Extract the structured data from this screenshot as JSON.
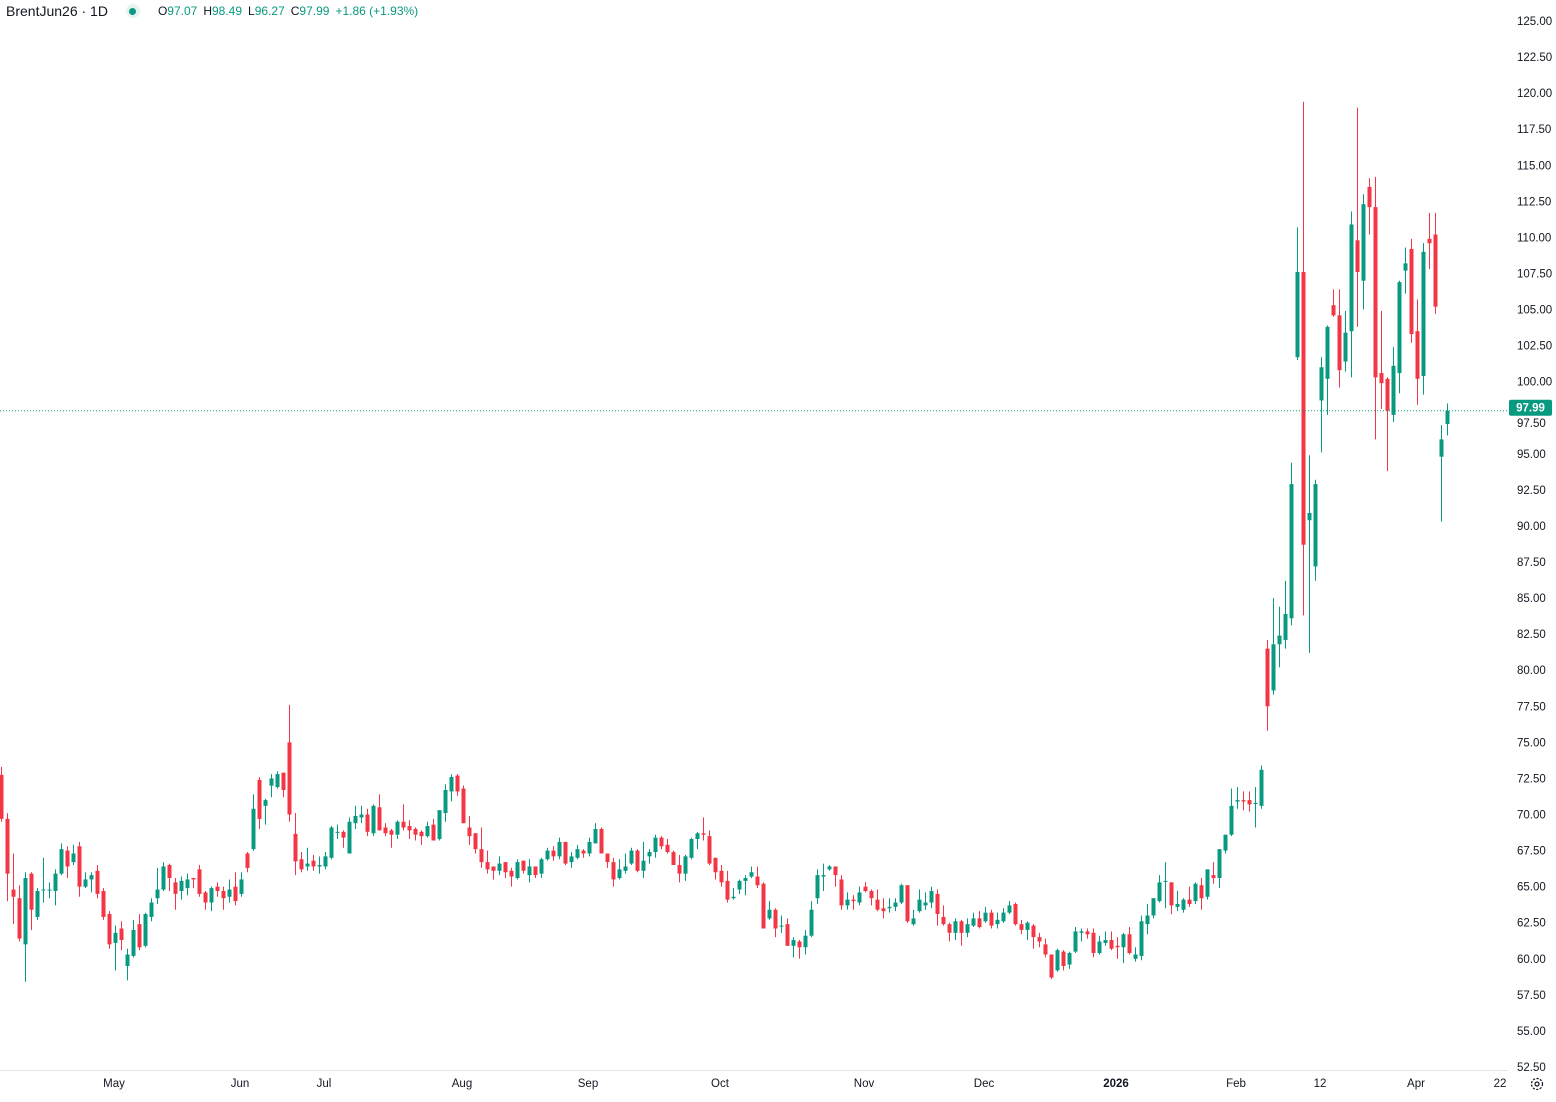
{
  "legend": {
    "symbol": "BrentJun26 · 1D",
    "open_label": "O",
    "open": "97.07",
    "high_label": "H",
    "high": "98.49",
    "low_label": "L",
    "low": "96.27",
    "close_label": "C",
    "close": "97.99",
    "change": "+1.86 (+1.93%)",
    "status_icon": "market-open-dot-icon"
  },
  "colors": {
    "up": "#089981",
    "down": "#f23645",
    "text": "#131722"
  },
  "chart_data": {
    "type": "candlestick",
    "title": "BrentJun26",
    "interval": "1D",
    "ylim": [
      52.5,
      125
    ],
    "y_ticks": [
      "125.00",
      "122.50",
      "120.00",
      "117.50",
      "115.00",
      "112.50",
      "110.00",
      "107.50",
      "105.00",
      "102.50",
      "100.00",
      "97.50",
      "95.00",
      "92.50",
      "90.00",
      "87.50",
      "85.00",
      "82.50",
      "80.00",
      "77.50",
      "75.00",
      "72.50",
      "70.00",
      "67.50",
      "65.00",
      "62.50",
      "60.00",
      "57.50",
      "55.00",
      "52.50"
    ],
    "x_ticks": [
      "May",
      "Jun",
      "Jul",
      "Aug",
      "Sep",
      "Oct",
      "Nov",
      "Dec",
      "2026",
      "Feb",
      "12",
      "Apr",
      "22"
    ],
    "last_price": 97.99,
    "last_price_label": "97.99",
    "grid": false,
    "ohlc_order": [
      "open",
      "high",
      "low",
      "close"
    ],
    "candles": [
      [
        72.75,
        73.3,
        69.5,
        69.7
      ],
      [
        69.7,
        70.1,
        64.0,
        65.9
      ],
      [
        64.8,
        67.3,
        62.4,
        64.3
      ],
      [
        64.2,
        65.1,
        61.2,
        61.4
      ],
      [
        61.0,
        66.0,
        58.4,
        65.6
      ],
      [
        65.9,
        66.0,
        62.0,
        63.4
      ],
      [
        62.9,
        64.9,
        62.7,
        64.7
      ],
      [
        64.8,
        67.0,
        63.9,
        64.8
      ],
      [
        64.8,
        65.3,
        64.2,
        64.8
      ],
      [
        64.7,
        66.2,
        63.7,
        65.9
      ],
      [
        65.9,
        68.0,
        65.8,
        67.6
      ],
      [
        67.5,
        67.8,
        65.6,
        66.4
      ],
      [
        66.7,
        67.9,
        66.5,
        67.3
      ],
      [
        67.8,
        68.1,
        64.3,
        65.0
      ],
      [
        65.0,
        66.0,
        64.9,
        65.5
      ],
      [
        65.5,
        66.0,
        64.6,
        65.8
      ],
      [
        66.1,
        66.5,
        64.2,
        64.5
      ],
      [
        64.7,
        64.9,
        62.7,
        62.9
      ],
      [
        63.1,
        63.3,
        60.7,
        61.0
      ],
      [
        61.1,
        62.3,
        59.2,
        61.8
      ],
      [
        62.1,
        62.6,
        60.6,
        61.3
      ],
      [
        59.5,
        60.7,
        58.5,
        60.3
      ],
      [
        60.2,
        62.7,
        60.1,
        62.0
      ],
      [
        62.4,
        63.1,
        60.6,
        60.8
      ],
      [
        60.9,
        63.2,
        60.8,
        63.1
      ],
      [
        62.9,
        64.2,
        62.6,
        63.9
      ],
      [
        64.2,
        66.3,
        63.8,
        64.8
      ],
      [
        64.8,
        66.7,
        64.7,
        66.4
      ],
      [
        66.5,
        66.6,
        64.7,
        65.6
      ],
      [
        65.3,
        65.6,
        63.4,
        64.5
      ],
      [
        64.7,
        65.7,
        64.1,
        65.4
      ],
      [
        64.9,
        65.9,
        64.4,
        65.5
      ],
      [
        65.6,
        65.6,
        64.9,
        65.5
      ],
      [
        66.2,
        66.5,
        64.3,
        64.5
      ],
      [
        64.6,
        64.7,
        63.4,
        63.9
      ],
      [
        63.9,
        65.0,
        63.3,
        64.9
      ],
      [
        65.0,
        65.3,
        64.3,
        64.7
      ],
      [
        64.7,
        65.0,
        63.4,
        64.2
      ],
      [
        64.3,
        65.5,
        63.9,
        64.8
      ],
      [
        65.0,
        66.0,
        63.7,
        64.0
      ],
      [
        64.5,
        66.0,
        64.3,
        65.5
      ],
      [
        67.3,
        67.4,
        66.0,
        66.3
      ],
      [
        67.6,
        71.4,
        67.5,
        70.4
      ],
      [
        72.4,
        72.6,
        69.0,
        69.7
      ],
      [
        70.6,
        71.1,
        69.3,
        71.0
      ],
      [
        72.0,
        72.8,
        71.2,
        72.5
      ],
      [
        71.9,
        73.0,
        71.8,
        72.8
      ],
      [
        72.9,
        72.9,
        71.2,
        71.7
      ],
      [
        75.0,
        77.6,
        69.5,
        70.0
      ],
      [
        68.66,
        70.1,
        65.8,
        66.75
      ],
      [
        66.9,
        67.4,
        66.0,
        66.2
      ],
      [
        66.4,
        67.7,
        66.1,
        66.6
      ],
      [
        66.8,
        67.2,
        66.1,
        66.4
      ],
      [
        66.4,
        67.1,
        65.9,
        66.5
      ],
      [
        66.4,
        67.4,
        66.2,
        67.1
      ],
      [
        67.0,
        69.2,
        66.9,
        69.1
      ],
      [
        68.8,
        69.3,
        68.3,
        68.8
      ],
      [
        68.8,
        68.9,
        67.7,
        68.4
      ],
      [
        67.3,
        69.8,
        67.3,
        69.5
      ],
      [
        69.4,
        70.6,
        69.0,
        69.9
      ],
      [
        69.8,
        70.6,
        69.4,
        70.0
      ],
      [
        70.0,
        70.4,
        68.5,
        68.8
      ],
      [
        68.7,
        70.7,
        68.5,
        70.6
      ],
      [
        70.5,
        71.4,
        68.9,
        68.9
      ],
      [
        69.1,
        69.4,
        68.5,
        68.7
      ],
      [
        68.9,
        69.0,
        67.7,
        68.6
      ],
      [
        68.6,
        69.6,
        68.3,
        69.5
      ],
      [
        69.5,
        70.7,
        68.9,
        69.1
      ],
      [
        69.2,
        69.6,
        68.3,
        68.9
      ],
      [
        69.0,
        69.1,
        68.2,
        68.6
      ],
      [
        68.8,
        68.9,
        67.9,
        68.5
      ],
      [
        68.5,
        69.5,
        68.4,
        69.2
      ],
      [
        69.3,
        69.7,
        68.2,
        68.2
      ],
      [
        68.3,
        70.3,
        68.2,
        70.3
      ],
      [
        70.1,
        72.1,
        69.5,
        71.7
      ],
      [
        71.6,
        72.8,
        70.9,
        72.6
      ],
      [
        72.7,
        72.8,
        71.3,
        71.6
      ],
      [
        71.8,
        72.0,
        69.4,
        69.4
      ],
      [
        69.1,
        69.9,
        67.9,
        68.5
      ],
      [
        68.7,
        68.7,
        67.3,
        67.6
      ],
      [
        67.6,
        69.1,
        66.3,
        66.7
      ],
      [
        66.7,
        67.5,
        65.9,
        66.2
      ],
      [
        66.4,
        66.4,
        65.5,
        66.1
      ],
      [
        66.1,
        67.1,
        65.8,
        66.6
      ],
      [
        66.7,
        66.7,
        65.6,
        66.0
      ],
      [
        66.1,
        66.3,
        65.0,
        65.7
      ],
      [
        65.6,
        66.9,
        65.5,
        66.7
      ],
      [
        66.8,
        66.8,
        65.9,
        66.1
      ],
      [
        65.8,
        66.9,
        65.3,
        66.4
      ],
      [
        66.4,
        66.4,
        65.6,
        65.8
      ],
      [
        65.9,
        67.0,
        65.6,
        66.9
      ],
      [
        66.9,
        67.7,
        66.8,
        67.5
      ],
      [
        67.5,
        67.8,
        66.8,
        67.1
      ],
      [
        67.1,
        68.4,
        66.9,
        68.1
      ],
      [
        68.1,
        68.1,
        66.5,
        66.6
      ],
      [
        66.7,
        67.4,
        66.3,
        67.1
      ],
      [
        67.0,
        67.9,
        66.9,
        67.6
      ],
      [
        67.5,
        67.6,
        67.0,
        67.3
      ],
      [
        67.3,
        68.4,
        67.1,
        68.1
      ],
      [
        68.0,
        69.4,
        68.0,
        69.0
      ],
      [
        69.0,
        69.1,
        67.3,
        67.3
      ],
      [
        67.3,
        67.3,
        66.3,
        66.7
      ],
      [
        66.7,
        67.0,
        65.0,
        65.5
      ],
      [
        65.6,
        66.9,
        65.5,
        66.2
      ],
      [
        66.1,
        67.3,
        65.9,
        66.4
      ],
      [
        66.6,
        67.7,
        66.5,
        67.5
      ],
      [
        67.5,
        67.6,
        66.0,
        66.1
      ],
      [
        66.1,
        68.1,
        65.6,
        66.8
      ],
      [
        67.1,
        67.6,
        66.6,
        67.4
      ],
      [
        67.4,
        68.6,
        67.0,
        68.4
      ],
      [
        68.4,
        68.5,
        67.6,
        67.8
      ],
      [
        67.9,
        68.3,
        67.3,
        67.4
      ],
      [
        67.4,
        67.5,
        66.5,
        66.5
      ],
      [
        66.5,
        67.2,
        65.3,
        65.9
      ],
      [
        65.9,
        67.2,
        65.4,
        67.1
      ],
      [
        67.0,
        68.4,
        66.9,
        68.3
      ],
      [
        68.3,
        68.8,
        67.6,
        68.7
      ],
      [
        68.7,
        69.8,
        68.2,
        68.6
      ],
      [
        68.5,
        68.9,
        66.5,
        66.6
      ],
      [
        67.0,
        67.0,
        65.5,
        66.0
      ],
      [
        66.1,
        66.5,
        65.0,
        65.3
      ],
      [
        65.4,
        66.1,
        63.9,
        64.1
      ],
      [
        64.2,
        64.9,
        64.1,
        64.3
      ],
      [
        64.8,
        65.5,
        64.5,
        65.4
      ],
      [
        65.4,
        65.8,
        64.4,
        65.6
      ],
      [
        65.7,
        66.4,
        65.6,
        66.0
      ],
      [
        65.7,
        66.4,
        64.9,
        65.1
      ],
      [
        65.2,
        65.3,
        62.1,
        62.1
      ],
      [
        62.8,
        64.0,
        62.7,
        63.4
      ],
      [
        63.4,
        63.5,
        61.5,
        62.1
      ],
      [
        62.3,
        63.0,
        61.8,
        62.3
      ],
      [
        62.4,
        62.8,
        60.9,
        60.9
      ],
      [
        60.9,
        61.5,
        60.1,
        61.3
      ],
      [
        61.2,
        61.3,
        60.0,
        60.8
      ],
      [
        60.8,
        62.0,
        60.3,
        61.6
      ],
      [
        61.6,
        64.0,
        61.5,
        63.4
      ],
      [
        64.2,
        66.2,
        63.8,
        65.8
      ],
      [
        65.7,
        66.6,
        64.7,
        65.8
      ],
      [
        66.2,
        66.5,
        66.1,
        66.4
      ],
      [
        66.4,
        66.4,
        65.0,
        65.8
      ],
      [
        65.5,
        65.8,
        63.4,
        63.7
      ],
      [
        63.7,
        64.6,
        63.4,
        64.1
      ],
      [
        64.1,
        64.4,
        63.4,
        64.0
      ],
      [
        63.9,
        65.0,
        63.7,
        64.6
      ],
      [
        65.0,
        65.3,
        64.6,
        64.7
      ],
      [
        64.7,
        64.8,
        63.7,
        64.2
      ],
      [
        64.1,
        64.8,
        63.3,
        63.4
      ],
      [
        63.5,
        64.2,
        62.8,
        63.3
      ],
      [
        63.5,
        64.2,
        63.2,
        63.6
      ],
      [
        63.6,
        64.2,
        63.3,
        63.9
      ],
      [
        63.9,
        65.2,
        63.8,
        65.1
      ],
      [
        65.1,
        65.1,
        62.5,
        62.6
      ],
      [
        62.4,
        63.4,
        62.3,
        62.8
      ],
      [
        63.3,
        64.8,
        63.2,
        64.1
      ],
      [
        63.7,
        64.6,
        63.4,
        63.9
      ],
      [
        63.9,
        65.0,
        63.5,
        64.7
      ],
      [
        64.5,
        64.8,
        62.3,
        63.1
      ],
      [
        62.9,
        63.7,
        62.3,
        62.4
      ],
      [
        62.4,
        62.5,
        61.2,
        61.8
      ],
      [
        61.8,
        62.8,
        61.3,
        62.6
      ],
      [
        62.6,
        62.7,
        60.9,
        61.8
      ],
      [
        61.8,
        62.8,
        61.5,
        62.4
      ],
      [
        62.3,
        63.2,
        62.2,
        62.8
      ],
      [
        62.8,
        63.3,
        62.1,
        62.2
      ],
      [
        62.6,
        63.6,
        62.5,
        63.2
      ],
      [
        63.2,
        63.4,
        62.1,
        62.3
      ],
      [
        62.4,
        63.2,
        62.1,
        62.7
      ],
      [
        62.6,
        63.5,
        62.5,
        63.2
      ],
      [
        63.2,
        64.0,
        63.1,
        63.7
      ],
      [
        63.8,
        63.9,
        62.3,
        62.4
      ],
      [
        62.4,
        62.7,
        61.7,
        62.0
      ],
      [
        62.0,
        62.6,
        61.3,
        62.5
      ],
      [
        62.3,
        62.4,
        60.7,
        61.5
      ],
      [
        61.5,
        61.8,
        60.8,
        61.2
      ],
      [
        61.0,
        61.4,
        60.1,
        60.3
      ],
      [
        60.3,
        60.3,
        58.6,
        58.7
      ],
      [
        59.2,
        60.7,
        59.1,
        60.6
      ],
      [
        60.5,
        60.6,
        59.2,
        59.5
      ],
      [
        59.6,
        60.5,
        59.3,
        60.4
      ],
      [
        60.5,
        62.2,
        60.4,
        61.9
      ],
      [
        61.8,
        62.1,
        61.2,
        61.9
      ],
      [
        61.9,
        62.1,
        61.4,
        61.7
      ],
      [
        61.8,
        62.1,
        60.1,
        60.4
      ],
      [
        60.4,
        61.6,
        60.3,
        61.2
      ],
      [
        61.1,
        61.9,
        60.9,
        61.3
      ],
      [
        61.3,
        61.9,
        60.6,
        60.7
      ],
      [
        60.9,
        61.5,
        60.0,
        60.8
      ],
      [
        60.8,
        61.8,
        59.7,
        61.7
      ],
      [
        61.7,
        62.2,
        60.3,
        60.4
      ],
      [
        60.0,
        60.8,
        59.8,
        60.3
      ],
      [
        60.2,
        63.0,
        59.9,
        62.6
      ],
      [
        62.4,
        63.8,
        61.7,
        63.0
      ],
      [
        63.0,
        64.2,
        62.8,
        64.2
      ],
      [
        64.0,
        65.8,
        63.9,
        65.3
      ],
      [
        65.4,
        66.7,
        63.5,
        65.4
      ],
      [
        65.3,
        65.3,
        63.1,
        63.7
      ],
      [
        63.6,
        64.7,
        63.3,
        63.8
      ],
      [
        63.4,
        64.2,
        63.2,
        64.1
      ],
      [
        64.1,
        65.0,
        63.6,
        63.8
      ],
      [
        64.0,
        65.3,
        63.8,
        65.2
      ],
      [
        65.1,
        65.6,
        63.4,
        64.2
      ],
      [
        64.3,
        66.2,
        64.1,
        66.2
      ],
      [
        65.8,
        66.7,
        65.2,
        65.6
      ],
      [
        65.6,
        67.6,
        64.9,
        67.6
      ],
      [
        67.5,
        68.6,
        67.3,
        68.6
      ],
      [
        68.6,
        71.8,
        68.5,
        70.6
      ],
      [
        70.9,
        71.9,
        70.4,
        71.0
      ],
      [
        71.0,
        71.6,
        70.3,
        70.9
      ],
      [
        71.0,
        71.6,
        70.2,
        70.7
      ],
      [
        70.8,
        71.9,
        69.1,
        70.8
      ],
      [
        70.6,
        73.4,
        70.4,
        73.1
      ],
      [
        81.5,
        82.1,
        75.8,
        77.5
      ],
      [
        78.6,
        85.0,
        78.3,
        81.8
      ],
      [
        81.8,
        84.4,
        80.2,
        82.4
      ],
      [
        82.1,
        86.2,
        81.5,
        83.9
      ],
      [
        83.6,
        94.4,
        83.1,
        92.9
      ],
      [
        101.7,
        110.7,
        101.5,
        107.6
      ],
      [
        107.6,
        119.4,
        83.8,
        88.7
      ],
      [
        90.4,
        94.9,
        81.2,
        90.9
      ],
      [
        87.2,
        93.2,
        86.2,
        92.9
      ],
      [
        98.7,
        101.7,
        95.1,
        101.0
      ],
      [
        100.2,
        103.9,
        97.7,
        103.8
      ],
      [
        105.3,
        106.4,
        104.5,
        104.6
      ],
      [
        104.6,
        106.4,
        99.6,
        100.8
      ],
      [
        101.4,
        104.9,
        100.7,
        103.4
      ],
      [
        103.5,
        111.8,
        100.3,
        110.9
      ],
      [
        109.8,
        119.0,
        103.8,
        107.6
      ],
      [
        107.0,
        113.0,
        105.0,
        112.3
      ],
      [
        113.5,
        114.1,
        110.2,
        112.1
      ],
      [
        112.1,
        114.2,
        96.0,
        100.3
      ],
      [
        100.6,
        104.9,
        98.1,
        99.9
      ],
      [
        100.2,
        100.3,
        93.8,
        98.0
      ],
      [
        97.7,
        102.4,
        97.2,
        101.1
      ],
      [
        100.6,
        107.0,
        99.2,
        106.9
      ],
      [
        107.7,
        109.3,
        106.1,
        108.2
      ],
      [
        109.2,
        109.9,
        102.7,
        103.3
      ],
      [
        103.5,
        105.7,
        98.4,
        100.2
      ],
      [
        100.4,
        109.6,
        99.1,
        109.0
      ],
      [
        109.9,
        111.7,
        107.8,
        109.6
      ],
      [
        110.2,
        111.7,
        104.7,
        105.2
      ],
      [
        94.8,
        97.0,
        90.3,
        96.0
      ],
      [
        97.07,
        98.49,
        96.27,
        97.99
      ]
    ]
  },
  "settings_icon": "settings-gear-icon"
}
